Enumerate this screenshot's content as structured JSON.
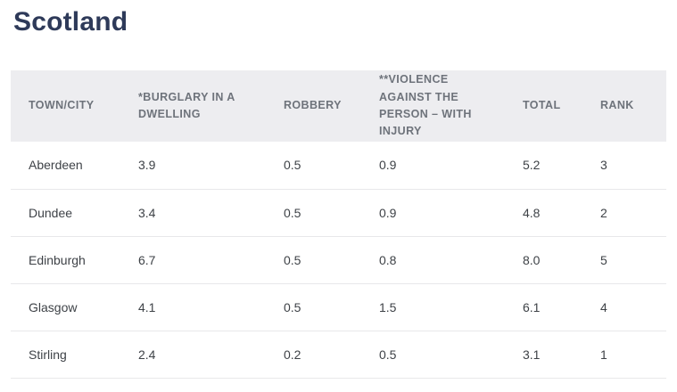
{
  "page": {
    "title": "Scotland"
  },
  "chart_data": {
    "type": "table",
    "title": "Scotland",
    "columns": [
      "TOWN/CITY",
      "*BURGLARY IN A DWELLING",
      "ROBBERY",
      "**VIOLENCE AGAINST THE PERSON – WITH INJURY",
      "TOTAL",
      "RANK"
    ],
    "rows": [
      [
        "Aberdeen",
        "3.9",
        "0.5",
        "0.9",
        "5.2",
        "3"
      ],
      [
        "Dundee",
        "3.4",
        "0.5",
        "0.9",
        "4.8",
        "2"
      ],
      [
        "Edinburgh",
        "6.7",
        "0.5",
        "0.8",
        "8.0",
        "5"
      ],
      [
        "Glasgow",
        "4.1",
        "0.5",
        "1.5",
        "6.1",
        "4"
      ],
      [
        "Stirling",
        "2.4",
        "0.2",
        "0.5",
        "3.1",
        "1"
      ]
    ]
  },
  "colors": {
    "title_text": "#2e3a59",
    "header_background": "#ededf0",
    "header_text": "#6e737b",
    "body_text": "#3e4247",
    "row_border": "#e8e8ea",
    "page_background": "#ffffff"
  }
}
